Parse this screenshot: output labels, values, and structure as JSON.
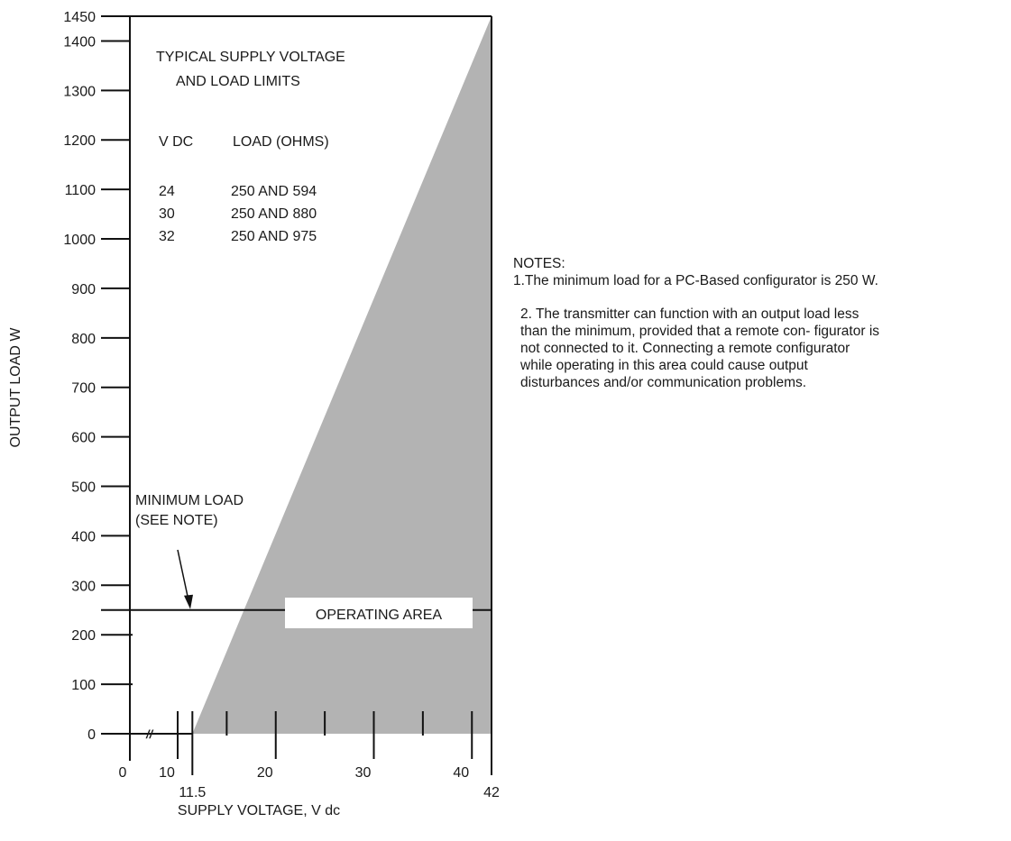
{
  "chart_data": {
    "type": "area",
    "title": "TYPICAL SUPPLY VOLTAGE\nAND LOAD LIMITS",
    "xlabel": "SUPPLY VOLTAGE, V dc",
    "ylabel": "OUTPUT LOAD W",
    "xlim": [
      0,
      42
    ],
    "ylim": [
      0,
      1450
    ],
    "x_ticks": [
      {
        "value": 0,
        "label": "0"
      },
      {
        "value": 10,
        "label": "10"
      },
      {
        "value": 20,
        "label": "20"
      },
      {
        "value": 30,
        "label": "30"
      },
      {
        "value": 40,
        "label": "40"
      }
    ],
    "x_minor_ticks": [
      15,
      25,
      35
    ],
    "x_special_ticks": [
      {
        "value": 11.5,
        "label": "11.5"
      },
      {
        "value": 42,
        "label": "42"
      }
    ],
    "y_ticks": [
      {
        "value": 0,
        "label": "0"
      },
      {
        "value": 100,
        "label": "100"
      },
      {
        "value": 200,
        "label": "200"
      },
      {
        "value": 300,
        "label": "300"
      },
      {
        "value": 400,
        "label": "400"
      },
      {
        "value": 500,
        "label": "500"
      },
      {
        "value": 600,
        "label": "600"
      },
      {
        "value": 700,
        "label": "700"
      },
      {
        "value": 800,
        "label": "800"
      },
      {
        "value": 900,
        "label": "900"
      },
      {
        "value": 1000,
        "label": "1000"
      },
      {
        "value": 1100,
        "label": "1100"
      },
      {
        "value": 1200,
        "label": "1200"
      },
      {
        "value": 1300,
        "label": "1300"
      },
      {
        "value": 1400,
        "label": "1400"
      },
      {
        "value": 1450,
        "label": "1450"
      }
    ],
    "operating_area": {
      "label": "OPERATING AREA",
      "color": "#b3b3b3",
      "boundary": [
        {
          "x": 11.5,
          "y": 0
        },
        {
          "x": 42,
          "y": 1450
        },
        {
          "x": 42,
          "y": 0
        }
      ]
    },
    "minimum_load": {
      "value": 250,
      "label": "MINIMUM LOAD\n(SEE NOTE)",
      "arrow_x": 10.5
    },
    "axis_break_mark": "//",
    "limits_table": {
      "headers": [
        "V DC",
        "LOAD (OHMS)"
      ],
      "rows": [
        [
          "24",
          "250 AND 594"
        ],
        [
          "30",
          "250 AND 880"
        ],
        [
          "32",
          "250 AND 975"
        ]
      ]
    }
  },
  "notes": {
    "heading": "NOTES:",
    "note1": "1.The minimum load for a PC-Based configurator is 250 W.",
    "note2": "2. The transmitter can function with an output load less than the minimum, provided that a remote con- figurator is not connected to it. Connecting a remote configurator while operating in this area could cause output disturbances and/or communication problems."
  }
}
